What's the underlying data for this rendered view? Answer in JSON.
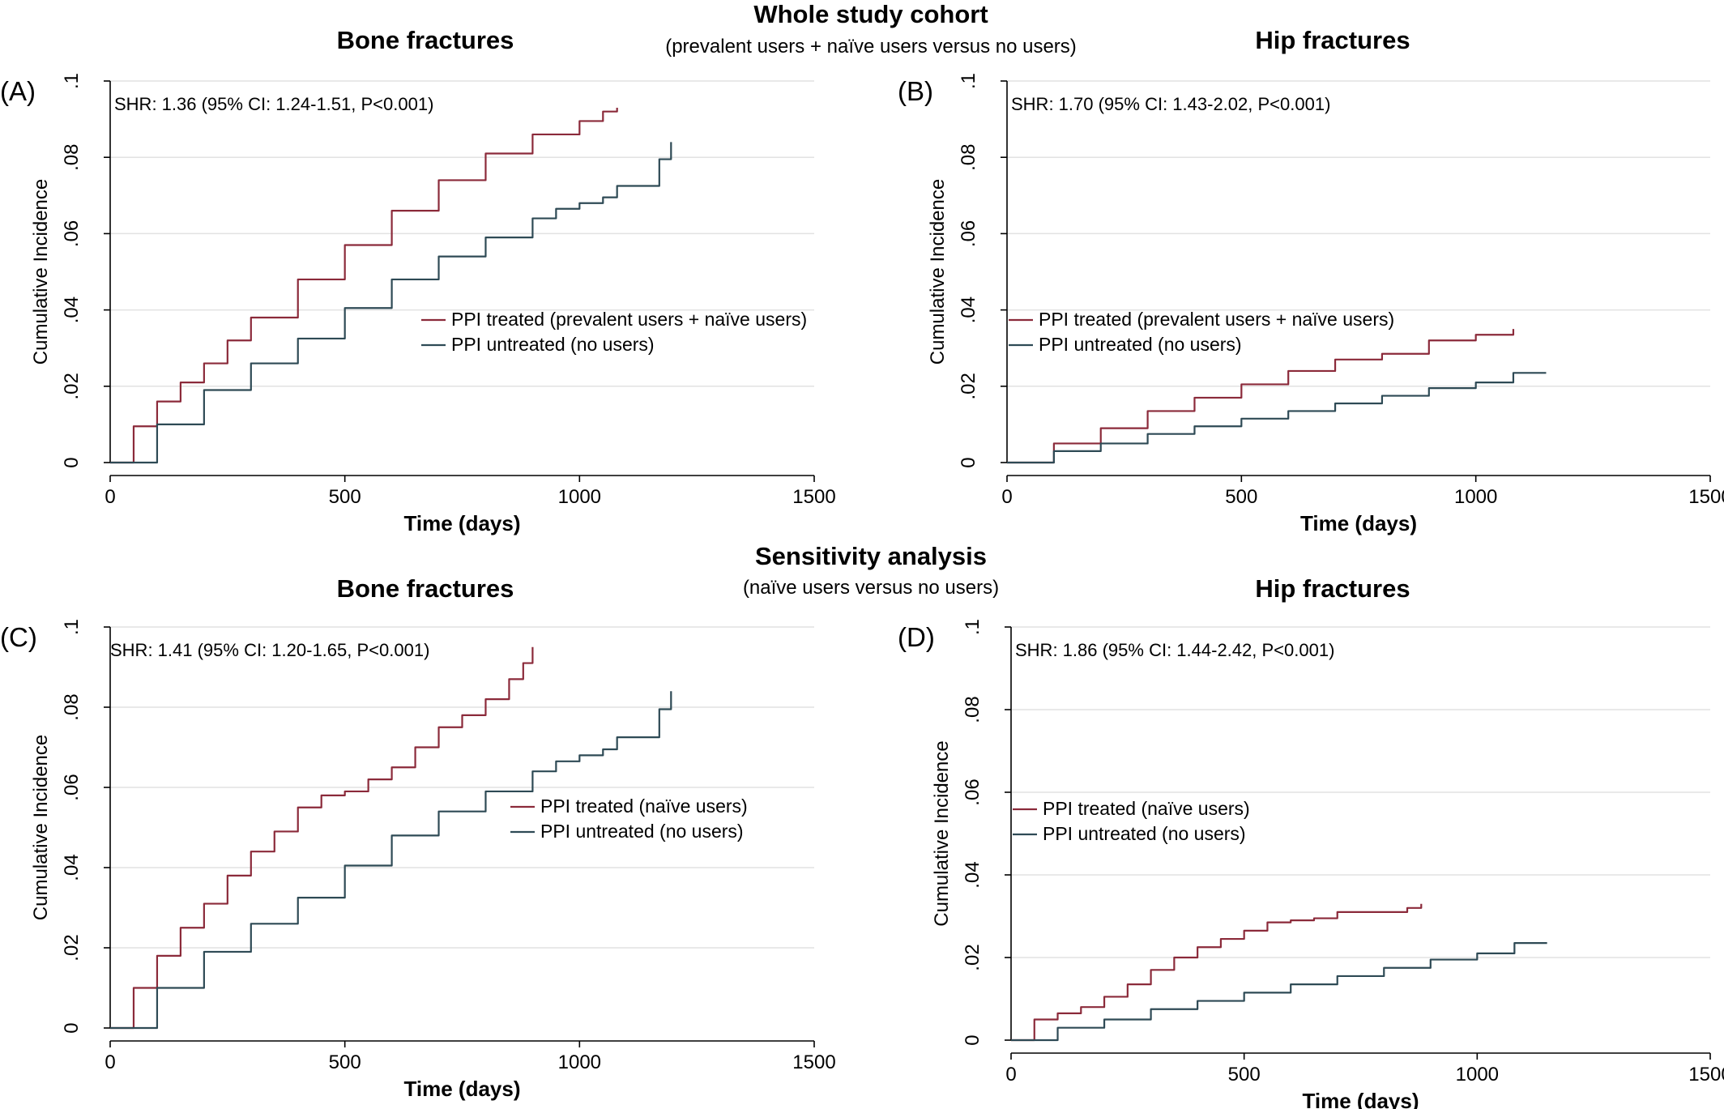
{
  "figure": {
    "sections": [
      {
        "title": "Whole study cohort",
        "subtitle": "(prevalent users + naïve users versus no users)"
      },
      {
        "title": "Sensitivity analysis",
        "subtitle": "(naïve users versus no users)"
      }
    ]
  },
  "colors": {
    "treated": "#8b2a3a",
    "untreated": "#2e4a55",
    "grid": "#e2e2e2",
    "axis": "#000000"
  },
  "chart_data": [
    {
      "panel_label": "(A)",
      "type": "line",
      "title": "Bone fractures",
      "xlabel": "Time (days)",
      "ylabel": "Cumulative Incidence",
      "xlim": [
        0,
        1500
      ],
      "ylim": [
        0,
        0.1
      ],
      "x_ticks": [
        0,
        500,
        1000,
        1500
      ],
      "y_ticks": [
        0,
        0.02,
        0.04,
        0.06,
        0.08,
        0.1
      ],
      "y_tick_labels": [
        "0",
        ".02",
        ".04",
        ".06",
        ".08",
        ".1"
      ],
      "grid": true,
      "annotation": "SHR:  1.36 (95% CI: 1.24-1.51, P<0.001)",
      "legend_position": "center-right",
      "series": [
        {
          "name": "PPI treated (prevalent users + naïve users)",
          "color": "#8b2a3a",
          "x": [
            0,
            50,
            100,
            150,
            200,
            250,
            300,
            400,
            500,
            600,
            700,
            800,
            900,
            1000,
            1050,
            1080
          ],
          "y": [
            0,
            0.0095,
            0.016,
            0.021,
            0.026,
            0.032,
            0.038,
            0.048,
            0.057,
            0.066,
            0.074,
            0.081,
            0.086,
            0.0895,
            0.092,
            0.093
          ]
        },
        {
          "name": "PPI untreated (no users)",
          "color": "#2e4a55",
          "x": [
            0,
            100,
            200,
            300,
            400,
            500,
            600,
            700,
            800,
            900,
            950,
            1000,
            1050,
            1080,
            1150,
            1170,
            1190,
            1195
          ],
          "y": [
            0,
            0.01,
            0.019,
            0.026,
            0.0325,
            0.0405,
            0.048,
            0.054,
            0.059,
            0.064,
            0.0665,
            0.068,
            0.0695,
            0.0725,
            0.0725,
            0.0795,
            0.0795,
            0.084
          ]
        }
      ]
    },
    {
      "panel_label": "(B)",
      "type": "line",
      "title": "Hip fractures",
      "xlabel": "Time (days)",
      "ylabel": "Cumulative Incidence",
      "xlim": [
        0,
        1500
      ],
      "ylim": [
        0,
        0.1
      ],
      "x_ticks": [
        0,
        500,
        1000,
        1500
      ],
      "y_ticks": [
        0,
        0.02,
        0.04,
        0.06,
        0.08,
        0.1
      ],
      "y_tick_labels": [
        "0",
        ".02",
        ".04",
        ".06",
        ".08",
        ".1"
      ],
      "grid": true,
      "annotation": "SHR:  1.70 (95% CI: 1.43-2.02, P<0.001)",
      "legend_position": "center-left",
      "series": [
        {
          "name": "PPI treated (prevalent users + naïve users)",
          "color": "#8b2a3a",
          "x": [
            0,
            100,
            200,
            300,
            400,
            500,
            600,
            700,
            800,
            900,
            1000,
            1080
          ],
          "y": [
            0,
            0.005,
            0.009,
            0.0135,
            0.017,
            0.0205,
            0.024,
            0.027,
            0.0285,
            0.032,
            0.0335,
            0.035
          ]
        },
        {
          "name": "PPI untreated (no users)",
          "color": "#2e4a55",
          "x": [
            0,
            100,
            200,
            300,
            400,
            500,
            600,
            700,
            800,
            900,
            1000,
            1080,
            1150
          ],
          "y": [
            0,
            0.003,
            0.005,
            0.0075,
            0.0095,
            0.0115,
            0.0135,
            0.0155,
            0.0175,
            0.0195,
            0.021,
            0.0235,
            0.0235
          ]
        }
      ]
    },
    {
      "panel_label": "(C)",
      "type": "line",
      "title": "Bone fractures",
      "xlabel": "Time (days)",
      "ylabel": "Cumulative Incidence",
      "xlim": [
        0,
        1500
      ],
      "ylim": [
        0,
        0.1
      ],
      "x_ticks": [
        0,
        500,
        1000,
        1500
      ],
      "y_ticks": [
        0,
        0.02,
        0.04,
        0.06,
        0.08,
        0.1
      ],
      "y_tick_labels": [
        "0",
        ".02",
        ".04",
        ".06",
        ".08",
        ".1"
      ],
      "grid": true,
      "annotation": "SHR:  1.41 (95% CI: 1.20-1.65, P<0.001)",
      "legend_position": "center-right",
      "series": [
        {
          "name": "PPI treated (naïve  users)",
          "color": "#8b2a3a",
          "x": [
            0,
            50,
            100,
            150,
            200,
            250,
            300,
            350,
            400,
            450,
            500,
            550,
            600,
            650,
            700,
            750,
            800,
            850,
            880,
            900
          ],
          "y": [
            0,
            0.01,
            0.018,
            0.025,
            0.031,
            0.038,
            0.044,
            0.049,
            0.055,
            0.058,
            0.059,
            0.062,
            0.065,
            0.07,
            0.075,
            0.078,
            0.082,
            0.087,
            0.091,
            0.095
          ]
        },
        {
          "name": "PPI untreated (no users)",
          "color": "#2e4a55",
          "x": [
            0,
            100,
            200,
            300,
            400,
            500,
            600,
            700,
            800,
            900,
            950,
            1000,
            1050,
            1080,
            1150,
            1170,
            1190,
            1195
          ],
          "y": [
            0,
            0.01,
            0.019,
            0.026,
            0.0325,
            0.0405,
            0.048,
            0.054,
            0.059,
            0.064,
            0.0665,
            0.068,
            0.0695,
            0.0725,
            0.0725,
            0.0795,
            0.0795,
            0.084
          ]
        }
      ]
    },
    {
      "panel_label": "(D)",
      "type": "line",
      "title": "Hip fractures",
      "xlabel": "Time (days)",
      "ylabel": "Cumulative Incidence",
      "xlim": [
        0,
        1500
      ],
      "ylim": [
        0,
        0.1
      ],
      "x_ticks": [
        0,
        500,
        1000,
        1500
      ],
      "y_ticks": [
        0,
        0.02,
        0.04,
        0.06,
        0.08,
        0.1
      ],
      "y_tick_labels": [
        "0",
        ".02",
        ".04",
        ".06",
        ".08",
        ".1"
      ],
      "grid": true,
      "annotation": "SHR:  1.86 (95% CI: 1.44-2.42, P<0.001)",
      "legend_position": "center-left",
      "series": [
        {
          "name": "PPI treated (naïve users)",
          "color": "#8b2a3a",
          "x": [
            0,
            50,
            100,
            150,
            200,
            250,
            300,
            350,
            400,
            450,
            500,
            550,
            600,
            650,
            700,
            750,
            800,
            850,
            880
          ],
          "y": [
            0,
            0.005,
            0.0065,
            0.008,
            0.0105,
            0.0135,
            0.017,
            0.02,
            0.0225,
            0.0245,
            0.0265,
            0.0285,
            0.029,
            0.0295,
            0.031,
            0.031,
            0.031,
            0.032,
            0.033
          ]
        },
        {
          "name": "PPI untreated (no users)",
          "color": "#2e4a55",
          "x": [
            0,
            100,
            200,
            300,
            400,
            500,
            600,
            700,
            800,
            900,
            1000,
            1080,
            1150
          ],
          "y": [
            0,
            0.003,
            0.005,
            0.0075,
            0.0095,
            0.0115,
            0.0135,
            0.0155,
            0.0175,
            0.0195,
            0.021,
            0.0235,
            0.0235
          ]
        }
      ]
    }
  ]
}
